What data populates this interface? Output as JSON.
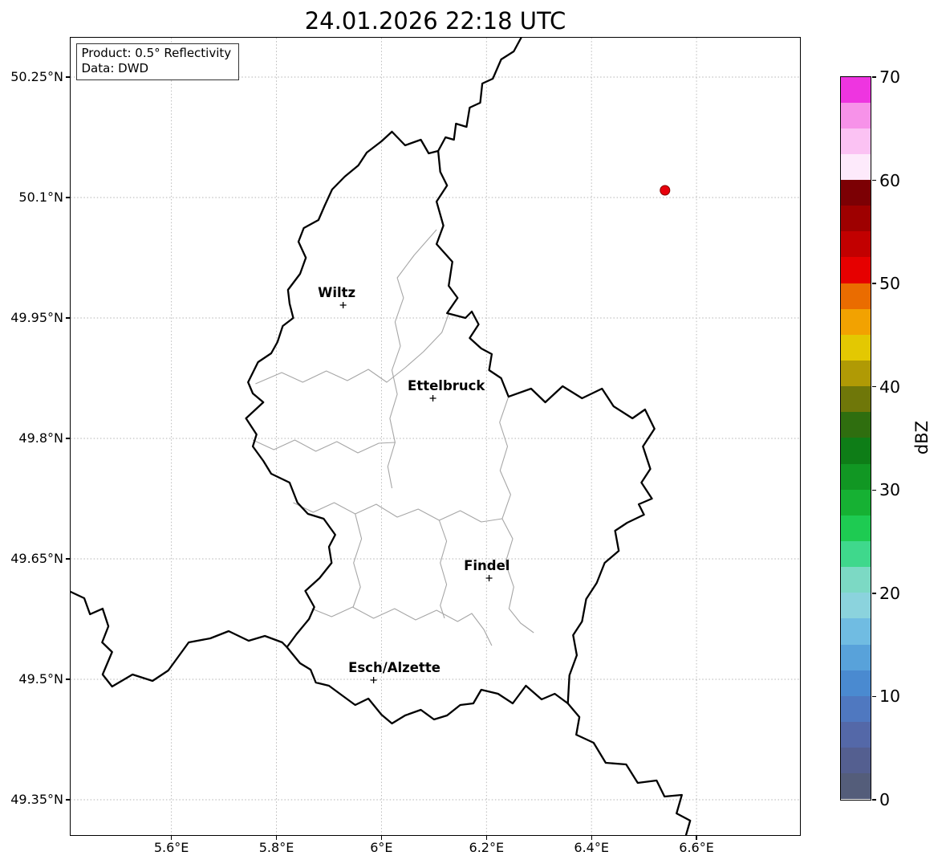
{
  "title": "24.01.2026 22:18 UTC",
  "info_box": {
    "line1": "Product: 0.5° Reflectivity",
    "line2": "Data: DWD"
  },
  "axes": {
    "extent": {
      "lon_min": 5.408,
      "lon_max": 6.797,
      "lat_min": 49.306,
      "lat_max": 50.299
    },
    "lon_ticks": [
      {
        "value": 5.6,
        "label": "5.6°E"
      },
      {
        "value": 5.8,
        "label": "5.8°E"
      },
      {
        "value": 6.0,
        "label": "6°E"
      },
      {
        "value": 6.2,
        "label": "6.2°E"
      },
      {
        "value": 6.4,
        "label": "6.4°E"
      },
      {
        "value": 6.6,
        "label": "6.6°E"
      }
    ],
    "lat_ticks": [
      {
        "value": 50.25,
        "label": "50.25°N"
      },
      {
        "value": 50.1,
        "label": "50.1°N"
      },
      {
        "value": 49.95,
        "label": "49.95°N"
      },
      {
        "value": 49.8,
        "label": "49.8°N"
      },
      {
        "value": 49.65,
        "label": "49.65°N"
      },
      {
        "value": 49.5,
        "label": "49.5°N"
      },
      {
        "value": 49.35,
        "label": "49.35°N"
      }
    ]
  },
  "colorbar": {
    "label": "dBZ",
    "min": 0,
    "max": 70,
    "ticks": [
      0,
      10,
      20,
      30,
      40,
      50,
      60,
      70
    ],
    "colors_bottom_to_top": [
      "#545d7a",
      "#545f90",
      "#5468a8",
      "#4f78c0",
      "#4a8ad0",
      "#58a2da",
      "#70bce2",
      "#8bd3dd",
      "#7cd9c4",
      "#3fd88c",
      "#1ecb52",
      "#16b133",
      "#119723",
      "#0e7d17",
      "#2f6e0f",
      "#6f7709",
      "#b09a05",
      "#e3c802",
      "#f2a201",
      "#ea6c00",
      "#e60000",
      "#c20000",
      "#9e0000",
      "#7c0004",
      "#fdeafb",
      "#fbc2f3",
      "#f792e9",
      "#ee35e0"
    ]
  },
  "cities": [
    {
      "name": "Wiltz",
      "lon": 5.927,
      "lat": 49.966
    },
    {
      "name": "Ettelbruck",
      "lon": 6.098,
      "lat": 49.85
    },
    {
      "name": "Findel",
      "lon": 6.205,
      "lat": 49.626
    },
    {
      "name": "Esch/Alzette",
      "lon": 5.985,
      "lat": 49.499
    }
  ],
  "radar_point": {
    "lon": 6.54,
    "lat": 50.109,
    "fill": "#e8000b",
    "edge": "#7f0000"
  },
  "map": {
    "country_border": [
      [
        6.02,
        50.182
      ],
      [
        6.045,
        50.165
      ],
      [
        6.075,
        50.172
      ],
      [
        6.09,
        50.155
      ],
      [
        6.108,
        50.158
      ],
      [
        6.112,
        50.132
      ],
      [
        6.125,
        50.115
      ],
      [
        6.105,
        50.095
      ],
      [
        6.118,
        50.065
      ],
      [
        6.105,
        50.042
      ],
      [
        6.135,
        50.02
      ],
      [
        6.128,
        49.99
      ],
      [
        6.145,
        49.975
      ],
      [
        6.125,
        49.956
      ],
      [
        6.16,
        49.95
      ],
      [
        6.172,
        49.958
      ],
      [
        6.185,
        49.942
      ],
      [
        6.168,
        49.925
      ],
      [
        6.19,
        49.912
      ],
      [
        6.21,
        49.905
      ],
      [
        6.205,
        49.885
      ],
      [
        6.228,
        49.875
      ],
      [
        6.242,
        49.852
      ],
      [
        6.285,
        49.862
      ],
      [
        6.312,
        49.845
      ],
      [
        6.345,
        49.865
      ],
      [
        6.382,
        49.85
      ],
      [
        6.42,
        49.862
      ],
      [
        6.442,
        49.84
      ],
      [
        6.478,
        49.825
      ],
      [
        6.502,
        49.836
      ],
      [
        6.52,
        49.812
      ],
      [
        6.498,
        49.79
      ],
      [
        6.512,
        49.762
      ],
      [
        6.495,
        49.745
      ],
      [
        6.515,
        49.725
      ],
      [
        6.49,
        49.718
      ],
      [
        6.5,
        49.705
      ],
      [
        6.468,
        49.695
      ],
      [
        6.445,
        49.685
      ],
      [
        6.452,
        49.66
      ],
      [
        6.425,
        49.645
      ],
      [
        6.41,
        49.62
      ],
      [
        6.39,
        49.6
      ],
      [
        6.382,
        49.572
      ],
      [
        6.365,
        49.555
      ],
      [
        6.372,
        49.53
      ],
      [
        6.358,
        49.505
      ],
      [
        6.355,
        49.47
      ],
      [
        6.33,
        49.482
      ],
      [
        6.305,
        49.475
      ],
      [
        6.275,
        49.492
      ],
      [
        6.25,
        49.47
      ],
      [
        6.222,
        49.482
      ],
      [
        6.19,
        49.487
      ],
      [
        6.175,
        49.47
      ],
      [
        6.15,
        49.468
      ],
      [
        6.125,
        49.455
      ],
      [
        6.1,
        49.45
      ],
      [
        6.075,
        49.462
      ],
      [
        6.045,
        49.455
      ],
      [
        6.02,
        49.445
      ],
      [
        6.0,
        49.456
      ],
      [
        5.975,
        49.476
      ],
      [
        5.95,
        49.468
      ],
      [
        5.925,
        49.48
      ],
      [
        5.9,
        49.492
      ],
      [
        5.875,
        49.496
      ],
      [
        5.865,
        49.512
      ],
      [
        5.845,
        49.52
      ],
      [
        5.82,
        49.54
      ],
      [
        5.838,
        49.556
      ],
      [
        5.862,
        49.575
      ],
      [
        5.872,
        49.59
      ],
      [
        5.855,
        49.61
      ],
      [
        5.882,
        49.626
      ],
      [
        5.905,
        49.645
      ],
      [
        5.9,
        49.665
      ],
      [
        5.912,
        49.68
      ],
      [
        5.89,
        49.7
      ],
      [
        5.86,
        49.706
      ],
      [
        5.84,
        49.72
      ],
      [
        5.825,
        49.745
      ],
      [
        5.79,
        49.756
      ],
      [
        5.775,
        49.772
      ],
      [
        5.755,
        49.79
      ],
      [
        5.762,
        49.805
      ],
      [
        5.742,
        49.825
      ],
      [
        5.775,
        49.845
      ],
      [
        5.755,
        49.856
      ],
      [
        5.746,
        49.87
      ],
      [
        5.765,
        49.895
      ],
      [
        5.79,
        49.906
      ],
      [
        5.802,
        49.92
      ],
      [
        5.812,
        49.94
      ],
      [
        5.832,
        49.95
      ],
      [
        5.825,
        49.968
      ],
      [
        5.822,
        49.985
      ],
      [
        5.845,
        50.005
      ],
      [
        5.856,
        50.025
      ],
      [
        5.842,
        50.045
      ],
      [
        5.852,
        50.062
      ],
      [
        5.88,
        50.072
      ],
      [
        5.892,
        50.09
      ],
      [
        5.906,
        50.11
      ],
      [
        5.93,
        50.126
      ],
      [
        5.956,
        50.14
      ],
      [
        5.972,
        50.156
      ],
      [
        6.0,
        50.17
      ],
      [
        6.02,
        50.182
      ]
    ],
    "foreign_borders": [
      [
        [
          6.108,
          50.158
        ],
        [
          6.122,
          50.175
        ],
        [
          6.138,
          50.172
        ],
        [
          6.142,
          50.192
        ],
        [
          6.162,
          50.188
        ],
        [
          6.168,
          50.212
        ],
        [
          6.188,
          50.218
        ],
        [
          6.192,
          50.242
        ],
        [
          6.212,
          50.248
        ],
        [
          6.228,
          50.272
        ],
        [
          6.252,
          50.282
        ],
        [
          6.266,
          50.299
        ]
      ],
      [
        [
          5.408,
          49.609
        ],
        [
          5.434,
          49.601
        ],
        [
          5.445,
          49.581
        ],
        [
          5.469,
          49.588
        ],
        [
          5.48,
          49.566
        ],
        [
          5.468,
          49.546
        ],
        [
          5.487,
          49.534
        ],
        [
          5.469,
          49.506
        ],
        [
          5.487,
          49.491
        ],
        [
          5.526,
          49.506
        ],
        [
          5.564,
          49.498
        ],
        [
          5.594,
          49.511
        ],
        [
          5.633,
          49.546
        ],
        [
          5.674,
          49.551
        ],
        [
          5.709,
          49.56
        ],
        [
          5.747,
          49.548
        ],
        [
          5.778,
          49.554
        ],
        [
          5.811,
          49.546
        ],
        [
          5.82,
          49.54
        ]
      ],
      [
        [
          6.355,
          49.47
        ],
        [
          6.377,
          49.453
        ],
        [
          6.371,
          49.431
        ],
        [
          6.404,
          49.421
        ],
        [
          6.427,
          49.396
        ],
        [
          6.466,
          49.394
        ],
        [
          6.488,
          49.371
        ],
        [
          6.524,
          49.374
        ],
        [
          6.539,
          49.354
        ],
        [
          6.572,
          49.356
        ],
        [
          6.562,
          49.333
        ],
        [
          6.588,
          49.324
        ],
        [
          6.58,
          49.306
        ]
      ]
    ],
    "district_borders": [
      [
        [
          5.76,
          49.868
        ],
        [
          5.81,
          49.882
        ],
        [
          5.85,
          49.87
        ],
        [
          5.895,
          49.884
        ],
        [
          5.935,
          49.872
        ],
        [
          5.975,
          49.886
        ],
        [
          6.01,
          49.87
        ],
        [
          6.045,
          49.888
        ],
        [
          6.08,
          49.908
        ],
        [
          6.115,
          49.932
        ],
        [
          6.128,
          49.955
        ]
      ],
      [
        [
          6.105,
          50.06
        ],
        [
          6.062,
          50.028
        ],
        [
          6.03,
          50.0
        ],
        [
          6.042,
          49.975
        ],
        [
          6.026,
          49.945
        ],
        [
          6.036,
          49.915
        ],
        [
          6.02,
          49.885
        ],
        [
          6.03,
          49.855
        ],
        [
          6.016,
          49.825
        ],
        [
          6.026,
          49.795
        ],
        [
          6.012,
          49.765
        ],
        [
          6.02,
          49.738
        ]
      ],
      [
        [
          5.755,
          49.798
        ],
        [
          5.795,
          49.786
        ],
        [
          5.835,
          49.798
        ],
        [
          5.875,
          49.784
        ],
        [
          5.915,
          49.796
        ],
        [
          5.955,
          49.782
        ],
        [
          5.995,
          49.794
        ],
        [
          6.026,
          49.795
        ]
      ],
      [
        [
          6.242,
          49.852
        ],
        [
          6.225,
          49.82
        ],
        [
          6.24,
          49.79
        ],
        [
          6.226,
          49.76
        ],
        [
          6.246,
          49.73
        ],
        [
          6.23,
          49.7
        ],
        [
          6.25,
          49.675
        ],
        [
          6.236,
          49.645
        ],
        [
          6.252,
          49.615
        ],
        [
          6.243,
          49.588
        ],
        [
          6.265,
          49.57
        ],
        [
          6.29,
          49.558
        ]
      ],
      [
        [
          5.832,
          49.72
        ],
        [
          5.87,
          49.708
        ],
        [
          5.91,
          49.72
        ],
        [
          5.95,
          49.706
        ],
        [
          5.99,
          49.718
        ],
        [
          6.03,
          49.702
        ],
        [
          6.07,
          49.712
        ],
        [
          6.11,
          49.698
        ],
        [
          6.15,
          49.71
        ],
        [
          6.19,
          49.696
        ],
        [
          6.23,
          49.7
        ]
      ],
      [
        [
          5.867,
          49.588
        ],
        [
          5.905,
          49.578
        ],
        [
          5.945,
          49.59
        ],
        [
          5.985,
          49.576
        ],
        [
          6.025,
          49.588
        ],
        [
          6.065,
          49.574
        ],
        [
          6.105,
          49.586
        ],
        [
          6.145,
          49.572
        ],
        [
          6.172,
          49.582
        ],
        [
          6.195,
          49.562
        ],
        [
          6.21,
          49.542
        ]
      ],
      [
        [
          5.95,
          49.706
        ],
        [
          5.962,
          49.675
        ],
        [
          5.947,
          49.645
        ],
        [
          5.96,
          49.615
        ],
        [
          5.946,
          49.59
        ]
      ],
      [
        [
          6.11,
          49.698
        ],
        [
          6.124,
          49.672
        ],
        [
          6.112,
          49.645
        ],
        [
          6.124,
          49.618
        ],
        [
          6.112,
          49.592
        ],
        [
          6.12,
          49.576
        ]
      ]
    ]
  }
}
